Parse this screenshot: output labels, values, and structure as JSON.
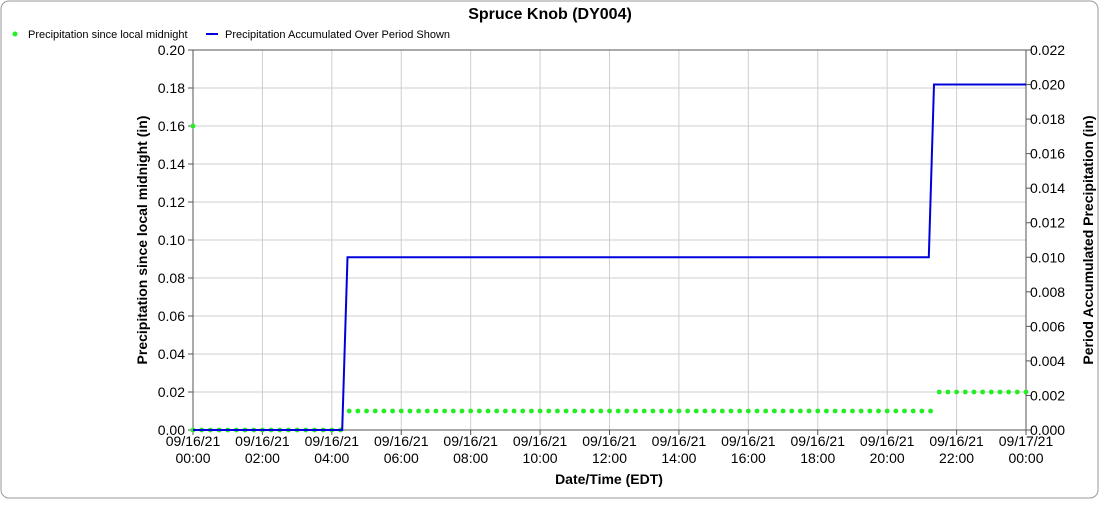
{
  "chart_data": {
    "type": "line",
    "title": "Spruce Knob (DY004)",
    "xlabel": "Date/Time (EDT)",
    "ylabel_left": "Precipitation since local midnight (in)",
    "ylabel_right": "Period Accumulated Precipitation (in)",
    "ylim_left": [
      0,
      0.2
    ],
    "ylim_right": [
      0,
      0.022
    ],
    "xlim_hours": [
      0,
      24
    ],
    "grid": true,
    "legend_position": "top-left",
    "x_tick_labels": [
      {
        "hour": 0,
        "date": "09/16/21",
        "time": "00:00"
      },
      {
        "hour": 2,
        "date": "09/16/21",
        "time": "02:00"
      },
      {
        "hour": 4,
        "date": "09/16/21",
        "time": "04:00"
      },
      {
        "hour": 6,
        "date": "09/16/21",
        "time": "06:00"
      },
      {
        "hour": 8,
        "date": "09/16/21",
        "time": "08:00"
      },
      {
        "hour": 10,
        "date": "09/16/21",
        "time": "10:00"
      },
      {
        "hour": 12,
        "date": "09/16/21",
        "time": "12:00"
      },
      {
        "hour": 14,
        "date": "09/16/21",
        "time": "14:00"
      },
      {
        "hour": 16,
        "date": "09/16/21",
        "time": "16:00"
      },
      {
        "hour": 18,
        "date": "09/16/21",
        "time": "18:00"
      },
      {
        "hour": 20,
        "date": "09/16/21",
        "time": "20:00"
      },
      {
        "hour": 22,
        "date": "09/16/21",
        "time": "22:00"
      },
      {
        "hour": 24,
        "date": "09/17/21",
        "time": "00:00"
      }
    ],
    "y_left_ticks": [
      "0.00",
      "0.02",
      "0.04",
      "0.06",
      "0.08",
      "0.10",
      "0.12",
      "0.14",
      "0.16",
      "0.18",
      "0.20"
    ],
    "y_right_ticks": [
      "0.000",
      "0.002",
      "0.004",
      "0.006",
      "0.008",
      "0.010",
      "0.012",
      "0.014",
      "0.016",
      "0.018",
      "0.020",
      "0.022"
    ],
    "series": [
      {
        "name": "Precipitation since local midnight",
        "axis": "left",
        "style": "dots",
        "color": "#22ee22",
        "segments": [
          {
            "start_hour": 0,
            "end_hour": 4.25,
            "value": 0.0
          },
          {
            "start_hour": 4.5,
            "end_hour": 21.25,
            "value": 0.01
          },
          {
            "start_hour": 21.5,
            "end_hour": 24,
            "value": 0.02
          }
        ],
        "isolated_points": [
          {
            "hour": 0,
            "value": 0.16
          }
        ]
      },
      {
        "name": "Precipitation Accumulated Over Period Shown",
        "axis": "right",
        "style": "line",
        "color": "#0000dd",
        "points": [
          {
            "hour": 0,
            "value": 0.0
          },
          {
            "hour": 4.3,
            "value": 0.0
          },
          {
            "hour": 4.45,
            "value": 0.01
          },
          {
            "hour": 21.2,
            "value": 0.01
          },
          {
            "hour": 21.35,
            "value": 0.02
          },
          {
            "hour": 24,
            "value": 0.02
          }
        ]
      }
    ]
  }
}
